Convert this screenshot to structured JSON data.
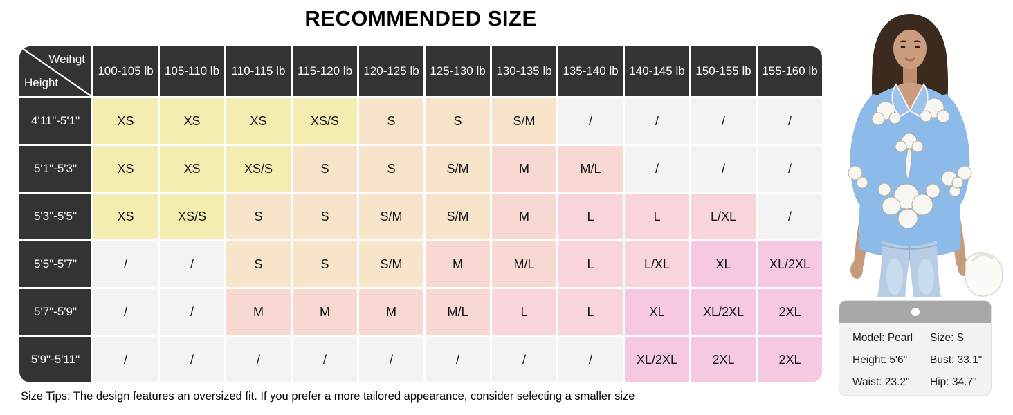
{
  "title": "RECOMMENDED SIZE",
  "size_tip": "Size Tips: The design features an oversized fit. If you prefer a more tailored appearance, consider selecting a smaller size",
  "chart_data": {
    "type": "table",
    "title": "RECOMMENDED SIZE",
    "corner": {
      "top_right_label": "Weihgt",
      "bottom_left_label": "Height"
    },
    "columns": [
      "100-105 lb",
      "105-110 lb",
      "110-115 lb",
      "115-120 lb",
      "120-125 lb",
      "125-130 lb",
      "130-135 lb",
      "135-140 lb",
      "140-145 lb",
      "150-155 lb",
      "155-160 lb"
    ],
    "rows": [
      {
        "height": "4'11\"-5'1\"",
        "sizes": [
          "XS",
          "XS",
          "XS",
          "XS/S",
          "S",
          "S",
          "S/M",
          "/",
          "/",
          "/",
          "/"
        ]
      },
      {
        "height": "5'1\"-5'3\"",
        "sizes": [
          "XS",
          "XS",
          "XS/S",
          "S",
          "S",
          "S/M",
          "M",
          "M/L",
          "/",
          "/",
          "/"
        ]
      },
      {
        "height": "5'3\"-5'5\"",
        "sizes": [
          "XS",
          "XS/S",
          "S",
          "S",
          "S/M",
          "S/M",
          "M",
          "L",
          "L",
          "L/XL",
          "/"
        ]
      },
      {
        "height": "5'5\"-5'7\"",
        "sizes": [
          "/",
          "/",
          "S",
          "S",
          "S/M",
          "M",
          "M/L",
          "L",
          "L/XL",
          "XL",
          "XL/2XL"
        ]
      },
      {
        "height": "5'7\"-5'9\"",
        "sizes": [
          "/",
          "/",
          "M",
          "M",
          "M",
          "M/L",
          "L",
          "L",
          "XL",
          "XL/2XL",
          "2XL"
        ]
      },
      {
        "height": "5'9\"-5'11\"",
        "sizes": [
          "/",
          "/",
          "/",
          "/",
          "/",
          "/",
          "/",
          "/",
          "XL/2XL",
          "2XL",
          "2XL"
        ]
      }
    ]
  },
  "colors": {
    "header_bg": "#333333",
    "grid_line": "#ffffff",
    "size_fill": {
      "XS": "#f4edb2",
      "XS/S": "#f4edb2",
      "S": "#f8e4ca",
      "S/M": "#f8e4ca",
      "M": "#f8d8d3",
      "M/L": "#f8d8d3",
      "L": "#f7d5da",
      "L/XL": "#f7d5da",
      "XL": "#f5c9e1",
      "XL/2XL": "#f5c9e1",
      "2XL": "#f5c9e1",
      "/": "#f3f3f3"
    }
  },
  "model_card": {
    "rows": [
      [
        "Model: Pearl",
        "Size: S"
      ],
      [
        "Height: 5'6\"",
        "Bust: 33.1\""
      ],
      [
        "Waist: 23.2\"",
        "Hip: 34.7\""
      ]
    ]
  },
  "model_photo": {
    "description": "Model wearing a light blue blouse with white floral print and light-wash jeans, holding a white bag"
  }
}
